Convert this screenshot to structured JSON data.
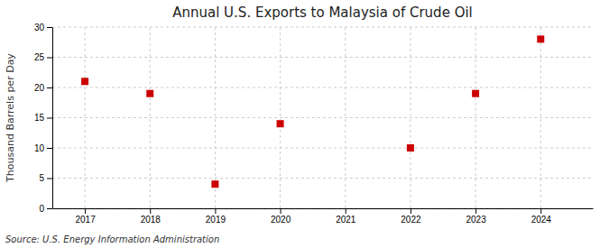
{
  "chart_data": {
    "type": "scatter",
    "title": "Annual U.S. Exports to Malaysia of Crude Oil",
    "ylabel": "Thousand Barrels per Day",
    "source": "Source: U.S. Energy Information Administration",
    "x": [
      2017,
      2018,
      2019,
      2020,
      2022,
      2023,
      2024
    ],
    "values": [
      21,
      19,
      4,
      14,
      10,
      19,
      28
    ],
    "color": "#cc0000",
    "marker": "square",
    "xlim": [
      2016.5,
      2024.8
    ],
    "ylim": [
      0,
      30
    ],
    "xticks": [
      2017,
      2018,
      2019,
      2020,
      2021,
      2022,
      2023,
      2024
    ],
    "yticks": [
      0,
      5,
      10,
      15,
      20,
      25,
      30
    ],
    "grid": true
  }
}
